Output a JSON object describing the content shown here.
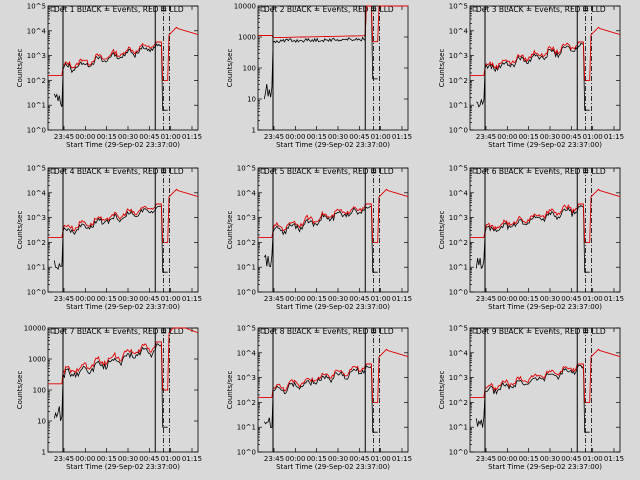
{
  "colors": {
    "background": "#d9d9d9",
    "events": "#000000",
    "lld": "#e00000"
  },
  "chart_data": [
    {
      "type": "line",
      "title": "Det 1  BLACK = Events, RED = LLD",
      "ylabel": "Counts/sec",
      "xlabel": "Start Time (29-Sep-02 23:37:00)",
      "y_scale": "log",
      "ylim": [
        1,
        100000
      ],
      "yticks": [
        "10^0",
        "10^1",
        "10^2",
        "10^3",
        "10^4",
        "10^5"
      ],
      "xticks": [
        "23:45",
        "00:00",
        "00:15",
        "00:30",
        "00:45",
        "01:00",
        "01:15"
      ],
      "series": [
        {
          "name": "Events",
          "values": []
        },
        {
          "name": "LLD",
          "values": []
        }
      ]
    },
    {
      "type": "line",
      "title": "Det 2  BLACK = Events, RED = LLD",
      "ylabel": "Counts/sec",
      "xlabel": "Start Time (29-Sep-02 23:37:00)",
      "y_scale": "log",
      "ylim": [
        1,
        10000
      ],
      "yticks": [
        "1",
        "10",
        "100",
        "1000",
        "10000"
      ],
      "xticks": [
        "23:45",
        "00:00",
        "00:15",
        "00:30",
        "00:45",
        "01:00",
        "01:15"
      ],
      "series": [
        {
          "name": "Events",
          "values": []
        },
        {
          "name": "LLD",
          "values": []
        }
      ]
    },
    {
      "type": "line",
      "title": "Det 3  BLACK = Events, RED = LLD",
      "ylabel": "Counts/sec",
      "xlabel": "Start Time (29-Sep-02 23:37:00)",
      "y_scale": "log",
      "ylim": [
        1,
        100000
      ],
      "yticks": [
        "10^0",
        "10^1",
        "10^2",
        "10^3",
        "10^4",
        "10^5"
      ],
      "xticks": [
        "23:45",
        "00:00",
        "00:15",
        "00:30",
        "00:45",
        "01:00",
        "01:15"
      ],
      "series": [
        {
          "name": "Events",
          "values": []
        },
        {
          "name": "LLD",
          "values": []
        }
      ]
    },
    {
      "type": "line",
      "title": "Det 4  BLACK = Events, RED = LLD",
      "ylabel": "Counts/sec",
      "xlabel": "Start Time (29-Sep-02 23:37:00)",
      "y_scale": "log",
      "ylim": [
        1,
        100000
      ],
      "yticks": [
        "10^0",
        "10^1",
        "10^2",
        "10^3",
        "10^4",
        "10^5"
      ],
      "xticks": [
        "23:45",
        "00:00",
        "00:15",
        "00:30",
        "00:45",
        "01:00",
        "01:15"
      ],
      "series": [
        {
          "name": "Events",
          "values": []
        },
        {
          "name": "LLD",
          "values": []
        }
      ]
    },
    {
      "type": "line",
      "title": "Det 5  BLACK = Events, RED = LLD",
      "ylabel": "Counts/sec",
      "xlabel": "Start Time (29-Sep-02 23:37:00)",
      "y_scale": "log",
      "ylim": [
        1,
        100000
      ],
      "yticks": [
        "10^0",
        "10^1",
        "10^2",
        "10^3",
        "10^4",
        "10^5"
      ],
      "xticks": [
        "23:45",
        "00:00",
        "00:15",
        "00:30",
        "00:45",
        "01:00",
        "01:15"
      ],
      "series": [
        {
          "name": "Events",
          "values": []
        },
        {
          "name": "LLD",
          "values": []
        }
      ]
    },
    {
      "type": "line",
      "title": "Det 6  BLACK = Events, RED = LLD",
      "ylabel": "Counts/sec",
      "xlabel": "Start Time (29-Sep-02 23:37:00)",
      "y_scale": "log",
      "ylim": [
        1,
        100000
      ],
      "yticks": [
        "10^0",
        "10^1",
        "10^2",
        "10^3",
        "10^4",
        "10^5"
      ],
      "xticks": [
        "23:45",
        "00:00",
        "00:15",
        "00:30",
        "00:45",
        "01:00",
        "01:15"
      ],
      "series": [
        {
          "name": "Events",
          "values": []
        },
        {
          "name": "LLD",
          "values": []
        }
      ]
    },
    {
      "type": "line",
      "title": "Det 7  BLACK = Events, RED = LLD",
      "ylabel": "Counts/sec",
      "xlabel": "Start Time (29-Sep-02 23:37:00)",
      "y_scale": "log",
      "ylim": [
        1,
        10000
      ],
      "yticks": [
        "1",
        "10",
        "100",
        "1000",
        "10000"
      ],
      "xticks": [
        "23:45",
        "00:00",
        "00:15",
        "00:30",
        "00:45",
        "01:00",
        "01:15"
      ],
      "series": [
        {
          "name": "Events",
          "values": []
        },
        {
          "name": "LLD",
          "values": []
        }
      ]
    },
    {
      "type": "line",
      "title": "Det 8  BLACK = Events, RED = LLD",
      "ylabel": "Counts/sec",
      "xlabel": "Start Time (29-Sep-02 23:37:00)",
      "y_scale": "log",
      "ylim": [
        1,
        100000
      ],
      "yticks": [
        "10^0",
        "10^1",
        "10^2",
        "10^3",
        "10^4",
        "10^5"
      ],
      "xticks": [
        "23:45",
        "00:00",
        "00:15",
        "00:30",
        "00:45",
        "01:00",
        "01:15"
      ],
      "series": [
        {
          "name": "Events",
          "values": []
        },
        {
          "name": "LLD",
          "values": []
        }
      ]
    },
    {
      "type": "line",
      "title": "Det 9  BLACK = Events, RED = LLD",
      "ylabel": "Counts/sec",
      "xlabel": "Start Time (29-Sep-02 23:37:00)",
      "y_scale": "log",
      "ylim": [
        1,
        100000
      ],
      "yticks": [
        "10^0",
        "10^1",
        "10^2",
        "10^3",
        "10^4",
        "10^5"
      ],
      "xticks": [
        "23:45",
        "00:00",
        "00:15",
        "00:30",
        "00:45",
        "01:00",
        "01:15"
      ],
      "series": [
        {
          "name": "Events",
          "values": []
        },
        {
          "name": "LLD",
          "values": []
        }
      ]
    }
  ]
}
